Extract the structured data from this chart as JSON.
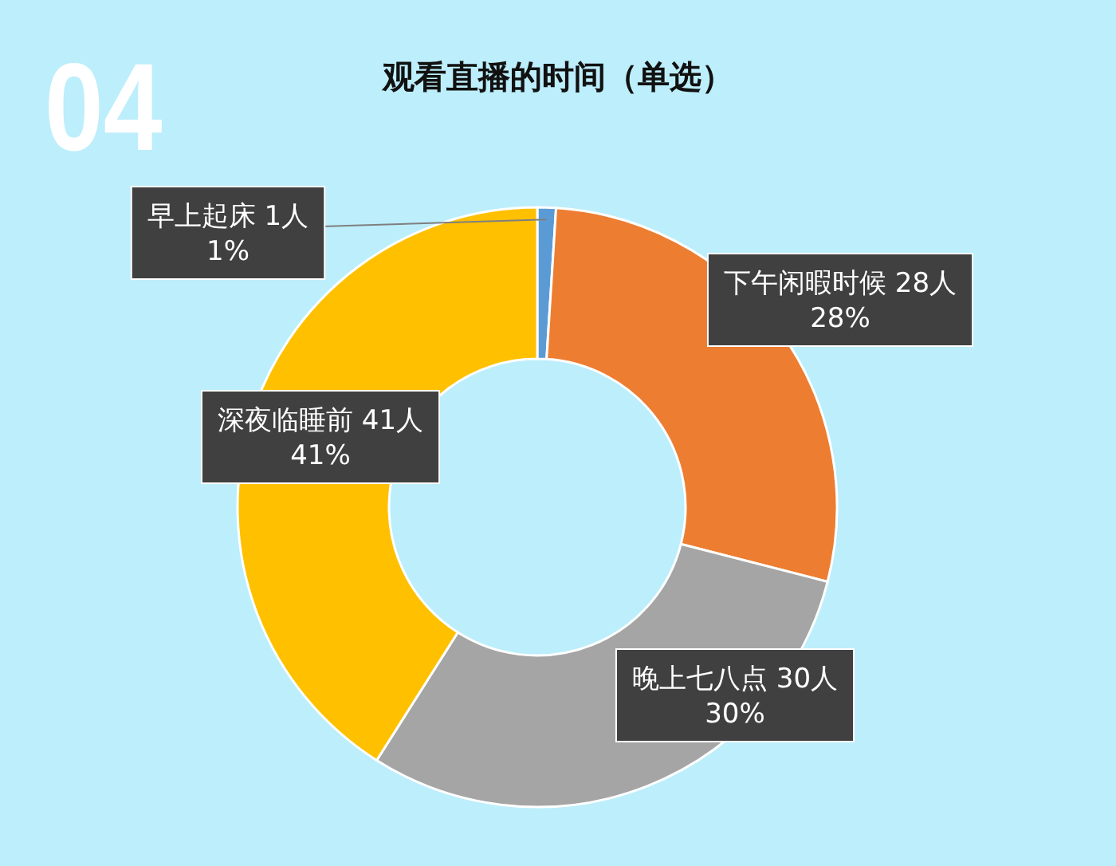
{
  "chart_data": {
    "type": "donut",
    "title": "观看直播的时间（单选）",
    "annotations": [
      "04"
    ],
    "categories": [
      "早上起床",
      "下午闲暇时候",
      "晚上七八点",
      "深夜临睡前"
    ],
    "values": [
      1,
      28,
      30,
      41
    ],
    "colors": [
      "#5b9bd5",
      "#ed7d31",
      "#a5a5a5",
      "#ffc000"
    ],
    "value_labels": [
      "1人\n1%",
      "28人\n28%",
      "30人\n30%",
      "41人\n41%"
    ]
  }
}
